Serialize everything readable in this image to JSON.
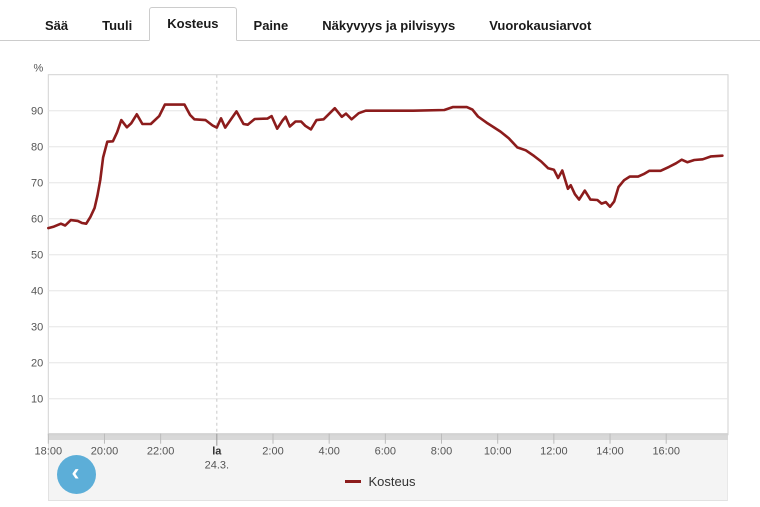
{
  "tabs": [
    {
      "label": "Sää",
      "active": false
    },
    {
      "label": "Tuuli",
      "active": false
    },
    {
      "label": "Kosteus",
      "active": true
    },
    {
      "label": "Paine",
      "active": false
    },
    {
      "label": "Näkyvyys ja pilvisyys",
      "active": false
    },
    {
      "label": "Vuorokausiarvot",
      "active": false
    }
  ],
  "chart_data": {
    "type": "line",
    "title": "",
    "ylabel": "%",
    "xlabel": "",
    "ylim": [
      0,
      100
    ],
    "grid": true,
    "legend_position": "bottom",
    "y_ticks": [
      10,
      20,
      30,
      40,
      50,
      60,
      70,
      80,
      90
    ],
    "x_domain_hours": [
      0,
      24.2
    ],
    "day_divider_hour": 6,
    "x_ticks": [
      {
        "h": 0,
        "label": "18:00"
      },
      {
        "h": 2,
        "label": "20:00"
      },
      {
        "h": 4,
        "label": "22:00"
      },
      {
        "h": 6,
        "label": "la",
        "sublabel": "24.3."
      },
      {
        "h": 8,
        "label": "2:00"
      },
      {
        "h": 10,
        "label": "4:00"
      },
      {
        "h": 12,
        "label": "6:00"
      },
      {
        "h": 14,
        "label": "8:00"
      },
      {
        "h": 16,
        "label": "10:00"
      },
      {
        "h": 18,
        "label": "12:00"
      },
      {
        "h": 20,
        "label": "14:00"
      },
      {
        "h": 22,
        "label": "16:00"
      }
    ],
    "series": [
      {
        "name": "Kosteus",
        "color": "#8c1c1c",
        "points": [
          [
            0,
            57.4
          ],
          [
            0.2,
            57.8
          ],
          [
            0.45,
            58.6
          ],
          [
            0.6,
            58.1
          ],
          [
            0.8,
            59.6
          ],
          [
            1.05,
            59.4
          ],
          [
            1.2,
            58.8
          ],
          [
            1.35,
            58.6
          ],
          [
            1.5,
            60.5
          ],
          [
            1.65,
            63
          ],
          [
            1.75,
            66.5
          ],
          [
            1.85,
            70.8
          ],
          [
            1.95,
            77
          ],
          [
            2.1,
            81.4
          ],
          [
            2.3,
            81.5
          ],
          [
            2.45,
            84
          ],
          [
            2.6,
            87.4
          ],
          [
            2.8,
            85.4
          ],
          [
            2.95,
            86.5
          ],
          [
            3.15,
            89
          ],
          [
            3.35,
            86.3
          ],
          [
            3.65,
            86.3
          ],
          [
            3.95,
            88.5
          ],
          [
            4.15,
            91.7
          ],
          [
            4.85,
            91.7
          ],
          [
            5.05,
            88.8
          ],
          [
            5.2,
            87.6
          ],
          [
            5.6,
            87.4
          ],
          [
            5.85,
            85.9
          ],
          [
            6,
            85.3
          ],
          [
            6.15,
            87.9
          ],
          [
            6.3,
            85.3
          ],
          [
            6.7,
            89.8
          ],
          [
            6.95,
            86.3
          ],
          [
            7.1,
            86.1
          ],
          [
            7.35,
            87.7
          ],
          [
            7.8,
            87.8
          ],
          [
            7.95,
            88.5
          ],
          [
            8.15,
            85
          ],
          [
            8.35,
            87.4
          ],
          [
            8.45,
            88.3
          ],
          [
            8.6,
            85.6
          ],
          [
            8.8,
            87
          ],
          [
            9,
            87
          ],
          [
            9.15,
            85.8
          ],
          [
            9.35,
            84.8
          ],
          [
            9.55,
            87.4
          ],
          [
            9.8,
            87.6
          ],
          [
            10.2,
            90.7
          ],
          [
            10.45,
            88.3
          ],
          [
            10.6,
            89.2
          ],
          [
            10.8,
            87.6
          ],
          [
            11.05,
            89.3
          ],
          [
            11.3,
            90
          ],
          [
            12,
            90
          ],
          [
            13,
            90
          ],
          [
            14.1,
            90.2
          ],
          [
            14.4,
            91
          ],
          [
            14.9,
            91
          ],
          [
            15.1,
            90.3
          ],
          [
            15.3,
            88.4
          ],
          [
            15.6,
            86.7
          ],
          [
            15.9,
            85.2
          ],
          [
            16.1,
            84.2
          ],
          [
            16.4,
            82.3
          ],
          [
            16.7,
            79.8
          ],
          [
            17,
            79
          ],
          [
            17.3,
            77.4
          ],
          [
            17.55,
            75.9
          ],
          [
            17.8,
            74
          ],
          [
            18,
            73.6
          ],
          [
            18.15,
            71.3
          ],
          [
            18.3,
            73.4
          ],
          [
            18.5,
            68.3
          ],
          [
            18.6,
            69.3
          ],
          [
            18.75,
            66.8
          ],
          [
            18.9,
            65.3
          ],
          [
            19.1,
            67.8
          ],
          [
            19.3,
            65.3
          ],
          [
            19.55,
            65.2
          ],
          [
            19.7,
            64.2
          ],
          [
            19.85,
            64.6
          ],
          [
            20,
            63.3
          ],
          [
            20.15,
            64.8
          ],
          [
            20.3,
            68.8
          ],
          [
            20.5,
            70.7
          ],
          [
            20.7,
            71.7
          ],
          [
            21,
            71.7
          ],
          [
            21.2,
            72.4
          ],
          [
            21.4,
            73.3
          ],
          [
            21.8,
            73.3
          ],
          [
            22.1,
            74.4
          ],
          [
            22.35,
            75.4
          ],
          [
            22.55,
            76.4
          ],
          [
            22.75,
            75.7
          ],
          [
            23,
            76.3
          ],
          [
            23.3,
            76.5
          ],
          [
            23.6,
            77.3
          ],
          [
            24,
            77.5
          ]
        ]
      }
    ]
  },
  "legend": {
    "label": "Kosteus"
  },
  "controls": {
    "scroll_left_glyph": "‹"
  },
  "colors": {
    "line_red": "#8c1c1c",
    "accent_blue": "#5caed8",
    "gridline": "#e6e6e6",
    "plot_border": "#d2d2d2",
    "axis_text": "#555555",
    "panel_bg": "#f4f4f4",
    "scrollbar": "#d8d8d8"
  }
}
